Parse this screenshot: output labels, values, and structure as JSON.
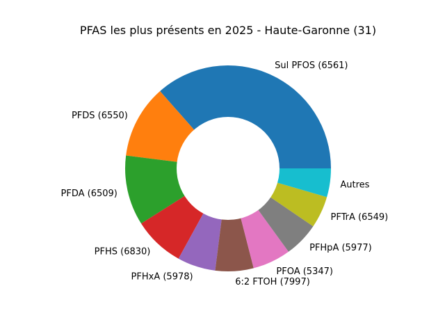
{
  "chart_data": {
    "type": "pie",
    "donut": true,
    "title": "PFAS les plus présents en 2025 - Haute-Garonne (31)",
    "slices": [
      {
        "label": "Sul PFOS (6561)",
        "value": 36.5,
        "color": "#1f77b4"
      },
      {
        "label": "PFDS (6550)",
        "value": 11.5,
        "color": "#ff7f0e"
      },
      {
        "label": "PFDA (6509)",
        "value": 11.0,
        "color": "#2ca02c"
      },
      {
        "label": "PFHS (6830)",
        "value": 8.0,
        "color": "#d62728"
      },
      {
        "label": "PFHxA (5978)",
        "value": 6.0,
        "color": "#9467bd"
      },
      {
        "label": "6:2 FTOH (7997)",
        "value": 6.0,
        "color": "#8c564b"
      },
      {
        "label": "PFOA (5347)",
        "value": 6.0,
        "color": "#e377c2"
      },
      {
        "label": "PFHpA (5977)",
        "value": 5.5,
        "color": "#7f7f7f"
      },
      {
        "label": "PFTrA (6549)",
        "value": 5.0,
        "color": "#bcbd22"
      },
      {
        "label": "Autres",
        "value": 4.5,
        "color": "#17becf"
      }
    ],
    "start_angle_deg": 0,
    "direction": "counterclockwise",
    "legend": "none"
  }
}
